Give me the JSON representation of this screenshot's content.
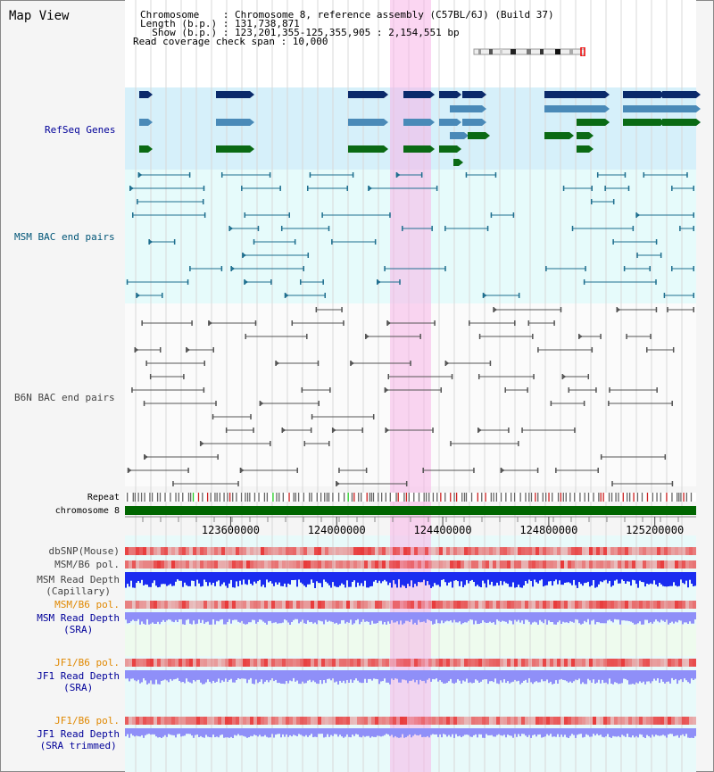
{
  "title": "Map View",
  "info": {
    "chromosome": "Chromosome    : Chromosome 8, reference assembly (C57BL/6J) (Build 37)",
    "length": "Length (b.p.) : 131,738,871",
    "show": "  Show (b.p.) : 123,201,355-125,355,905 : 2,154,551 bp",
    "coverage": "Read coverage check span : 10,000"
  },
  "region": {
    "start": 123201355,
    "end": 125355905
  },
  "highlight": {
    "start": 124201355,
    "end": 124355905
  },
  "axis_ticks": [
    123600000,
    124000000,
    124400000,
    124800000,
    125200000
  ],
  "tracks": {
    "refseq": "RefSeq Genes",
    "msm_bac": "MSM BAC end pairs",
    "b6n_bac": "B6N BAC end pairs",
    "repeat": "Repeat",
    "chromosome": "chromosome 8",
    "dbsnp": "dbSNP(Mouse)",
    "msm_b6_pol_1": "MSM/B6 pol.",
    "msm_rd_cap_1": "MSM Read Depth",
    "msm_rd_cap_2": "(Capillary)",
    "msm_b6_pol_2": "MSM/B6 pol.",
    "msm_rd_sra_1": "MSM Read Depth",
    "msm_rd_sra_2": "(SRA)",
    "jf1_b6_pol_1": "JF1/B6 pol.",
    "jf1_rd_sra_1": "JF1 Read Depth",
    "jf1_rd_sra_2": "(SRA)",
    "jf1_b6_pol_2": "JF1/B6 pol.",
    "jf1_rd_trim_1": "JF1 Read Depth",
    "jf1_rd_trim_2": "(SRA trimmed)"
  },
  "colors": {
    "gene_navy": "#0b2a6b",
    "gene_steel": "#4a8ab8",
    "gene_green": "#0a6a14",
    "msm_bac": "#1f6f8f",
    "b6n_bac": "#555555",
    "heat_red": "#e83a3a",
    "depth_blue": "#1a2cf0",
    "depth_light": "#8f8ff8"
  }
}
